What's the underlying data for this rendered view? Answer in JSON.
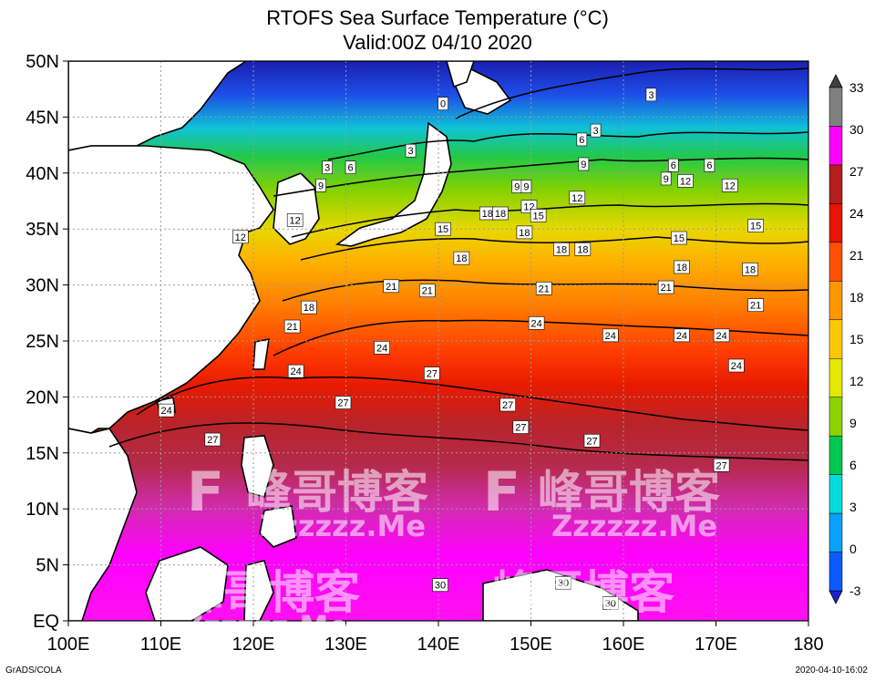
{
  "chart_data": {
    "type": "heatmap",
    "title": "RTOFS Sea Surface Temperature (°C)",
    "subtitle": "Valid:00Z 04/10 2020",
    "x_ticks": [
      "100E",
      "110E",
      "120E",
      "130E",
      "140E",
      "150E",
      "160E",
      "170E",
      "180"
    ],
    "y_ticks": [
      "50N",
      "45N",
      "40N",
      "35N",
      "30N",
      "25N",
      "20N",
      "15N",
      "10N",
      "5N",
      "EQ"
    ],
    "xlim": [
      100,
      180
    ],
    "ylim": [
      0,
      50
    ],
    "colorbar": {
      "ticks": [
        "33",
        "30",
        "27",
        "24",
        "21",
        "18",
        "15",
        "12",
        "9",
        "6",
        "3",
        "0",
        "-3"
      ],
      "levels": [
        -3,
        0,
        3,
        6,
        9,
        12,
        15,
        18,
        21,
        24,
        27,
        30,
        33
      ],
      "colors": [
        "#1e1ecd",
        "#0a5aff",
        "#0aa0ff",
        "#00dcdc",
        "#00c850",
        "#8cd200",
        "#e6e600",
        "#ffc800",
        "#ff9600",
        "#ff5000",
        "#e61400",
        "#b41e1e",
        "#ff00ff",
        "#808080",
        "#404040"
      ]
    },
    "contour_labels": [
      {
        "lon": 140.5,
        "lat": 46.2,
        "text": "0"
      },
      {
        "lon": 163,
        "lat": 47,
        "text": "3"
      },
      {
        "lon": 137,
        "lat": 42,
        "text": "3"
      },
      {
        "lon": 128,
        "lat": 40.5,
        "text": "3"
      },
      {
        "lon": 130.5,
        "lat": 40.5,
        "text": "6"
      },
      {
        "lon": 157,
        "lat": 43.8,
        "text": "3"
      },
      {
        "lon": 155.5,
        "lat": 43,
        "text": "6"
      },
      {
        "lon": 169.3,
        "lat": 40.7,
        "text": "6"
      },
      {
        "lon": 165.4,
        "lat": 40.7,
        "text": "6"
      },
      {
        "lon": 155.7,
        "lat": 40.8,
        "text": "9"
      },
      {
        "lon": 164.6,
        "lat": 39.5,
        "text": "9"
      },
      {
        "lon": 148.5,
        "lat": 38.8,
        "text": "9"
      },
      {
        "lon": 149.5,
        "lat": 38.8,
        "text": "9"
      },
      {
        "lon": 127.3,
        "lat": 38.9,
        "text": "9"
      },
      {
        "lon": 166.7,
        "lat": 39.3,
        "text": "12"
      },
      {
        "lon": 171.5,
        "lat": 38.9,
        "text": "12"
      },
      {
        "lon": 155,
        "lat": 37.8,
        "text": "12"
      },
      {
        "lon": 149.8,
        "lat": 37,
        "text": "12"
      },
      {
        "lon": 124.5,
        "lat": 35.8,
        "text": "12"
      },
      {
        "lon": 118.6,
        "lat": 34.3,
        "text": "12"
      },
      {
        "lon": 145.3,
        "lat": 36.4,
        "text": "18"
      },
      {
        "lon": 146.7,
        "lat": 36.4,
        "text": "18"
      },
      {
        "lon": 150.8,
        "lat": 36.2,
        "text": "15"
      },
      {
        "lon": 140.5,
        "lat": 35,
        "text": "15"
      },
      {
        "lon": 166,
        "lat": 34.2,
        "text": "15"
      },
      {
        "lon": 174.3,
        "lat": 35.3,
        "text": "15"
      },
      {
        "lon": 149.3,
        "lat": 34.7,
        "text": "18"
      },
      {
        "lon": 153.3,
        "lat": 33.2,
        "text": "18"
      },
      {
        "lon": 155.6,
        "lat": 33.2,
        "text": "18"
      },
      {
        "lon": 142.5,
        "lat": 32.4,
        "text": "18"
      },
      {
        "lon": 166.3,
        "lat": 31.6,
        "text": "18"
      },
      {
        "lon": 173.7,
        "lat": 31.4,
        "text": "18"
      },
      {
        "lon": 134.9,
        "lat": 29.9,
        "text": "21"
      },
      {
        "lon": 138.8,
        "lat": 29.5,
        "text": "21"
      },
      {
        "lon": 151.4,
        "lat": 29.7,
        "text": "21"
      },
      {
        "lon": 164.6,
        "lat": 29.8,
        "text": "21"
      },
      {
        "lon": 174.3,
        "lat": 28.2,
        "text": "21"
      },
      {
        "lon": 126,
        "lat": 28,
        "text": "18"
      },
      {
        "lon": 124.2,
        "lat": 26.3,
        "text": "21"
      },
      {
        "lon": 150.6,
        "lat": 26.6,
        "text": "24"
      },
      {
        "lon": 158.6,
        "lat": 25.5,
        "text": "24"
      },
      {
        "lon": 166.3,
        "lat": 25.5,
        "text": "24"
      },
      {
        "lon": 170.6,
        "lat": 25.5,
        "text": "24"
      },
      {
        "lon": 133.9,
        "lat": 24.4,
        "text": "24"
      },
      {
        "lon": 124.6,
        "lat": 22.3,
        "text": "24"
      },
      {
        "lon": 172.2,
        "lat": 22.8,
        "text": "24"
      },
      {
        "lon": 139.3,
        "lat": 22.1,
        "text": "27"
      },
      {
        "lon": 129.7,
        "lat": 19.5,
        "text": "27"
      },
      {
        "lon": 147.5,
        "lat": 19.3,
        "text": "27"
      },
      {
        "lon": 110.6,
        "lat": 18.8,
        "text": "24"
      },
      {
        "lon": 148.9,
        "lat": 17.3,
        "text": "27"
      },
      {
        "lon": 115.6,
        "lat": 16.2,
        "text": "27"
      },
      {
        "lon": 156.6,
        "lat": 16.1,
        "text": "27"
      },
      {
        "lon": 170.6,
        "lat": 13.9,
        "text": "27"
      },
      {
        "lon": 140.2,
        "lat": 3.2,
        "text": "30"
      },
      {
        "lon": 153.5,
        "lat": 3.4,
        "text": "30"
      },
      {
        "lon": 158.6,
        "lat": 1.6,
        "text": "30"
      }
    ]
  },
  "footer": {
    "left": "GrADS/COLA",
    "right": "2020-04-10-16:02"
  },
  "watermark": {
    "cn": "峰哥博客",
    "url": "Zzzzzz.Me",
    "glyph": "F"
  }
}
